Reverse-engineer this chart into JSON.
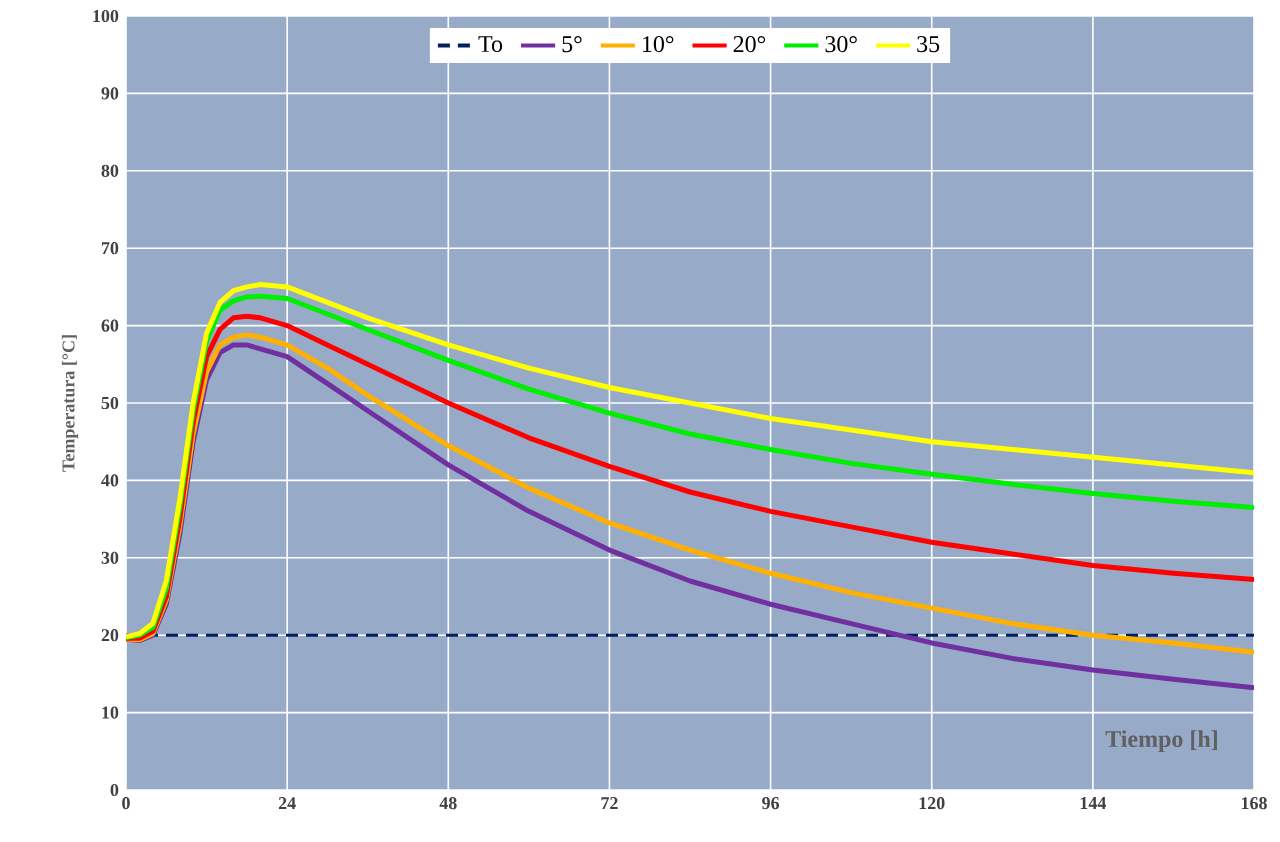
{
  "chart_data": {
    "type": "line",
    "xlabel": "Tiempo [h]",
    "ylabel": "Temperatura [°C]",
    "xlim": [
      0,
      168
    ],
    "ylim": [
      0,
      100
    ],
    "xticks": [
      0,
      24,
      48,
      72,
      96,
      120,
      144,
      168
    ],
    "yticks": [
      0,
      10,
      20,
      30,
      40,
      50,
      60,
      70,
      80,
      90,
      100
    ],
    "grid": true,
    "legend": "top",
    "marker": "none",
    "series": [
      {
        "name": "To",
        "color": "#002060",
        "line_style": "dashed",
        "x": [
          0,
          168
        ],
        "values": [
          20,
          20
        ]
      },
      {
        "name": "5°",
        "color": "#7030a0",
        "x": [
          0,
          2,
          4,
          6,
          8,
          10,
          12,
          14,
          16,
          18,
          20,
          24,
          30,
          36,
          48,
          60,
          72,
          84,
          96,
          108,
          120,
          132,
          144,
          156,
          168
        ],
        "values": [
          19.5,
          19.3,
          20,
          24,
          33,
          45,
          53,
          56.5,
          57.5,
          57.5,
          57,
          56,
          52.5,
          49,
          42,
          36,
          31,
          27,
          24,
          21.5,
          19,
          17,
          15.5,
          14.3,
          13.2
        ]
      },
      {
        "name": "10°",
        "color": "#ffb000",
        "x": [
          0,
          2,
          4,
          6,
          8,
          10,
          12,
          14,
          16,
          18,
          20,
          24,
          30,
          36,
          48,
          60,
          72,
          84,
          96,
          108,
          120,
          132,
          144,
          156,
          168
        ],
        "values": [
          19.5,
          19.4,
          20.2,
          24.5,
          34,
          46,
          54,
          57.5,
          58.5,
          58.8,
          58.5,
          57.5,
          54.5,
          51,
          44.5,
          39,
          34.5,
          31,
          28,
          25.5,
          23.5,
          21.5,
          20,
          19,
          17.8
        ]
      },
      {
        "name": "20°",
        "color": "#ff0000",
        "x": [
          0,
          2,
          4,
          6,
          8,
          10,
          12,
          14,
          16,
          18,
          20,
          24,
          30,
          36,
          48,
          60,
          72,
          84,
          96,
          108,
          120,
          132,
          144,
          156,
          168
        ],
        "values": [
          19.6,
          19.6,
          20.5,
          25,
          35,
          47.5,
          56,
          59.5,
          61,
          61.2,
          61,
          60,
          57.5,
          55,
          50,
          45.5,
          41.8,
          38.5,
          36,
          34,
          32,
          30.5,
          29,
          28,
          27.2
        ]
      },
      {
        "name": "30°",
        "color": "#00ee00",
        "x": [
          0,
          2,
          4,
          6,
          8,
          10,
          12,
          14,
          16,
          18,
          20,
          24,
          30,
          36,
          48,
          60,
          72,
          84,
          96,
          108,
          120,
          132,
          144,
          156,
          168
        ],
        "values": [
          19.7,
          20,
          21,
          26,
          36.5,
          49,
          58,
          62,
          63.2,
          63.7,
          63.8,
          63.5,
          61.5,
          59.5,
          55.5,
          51.8,
          48.7,
          46,
          44,
          42.2,
          40.8,
          39.5,
          38.3,
          37.3,
          36.5
        ]
      },
      {
        "name": "35",
        "color": "#ffff00",
        "x": [
          0,
          2,
          4,
          6,
          8,
          10,
          12,
          14,
          16,
          18,
          20,
          24,
          30,
          36,
          48,
          60,
          72,
          84,
          96,
          108,
          120,
          132,
          144,
          156,
          168
        ],
        "values": [
          19.8,
          20.2,
          21.5,
          27,
          37.5,
          50,
          59,
          63,
          64.5,
          65,
          65.3,
          65,
          63,
          61,
          57.5,
          54.5,
          52,
          50,
          48,
          46.5,
          45,
          44,
          43,
          42,
          41
        ]
      }
    ]
  }
}
